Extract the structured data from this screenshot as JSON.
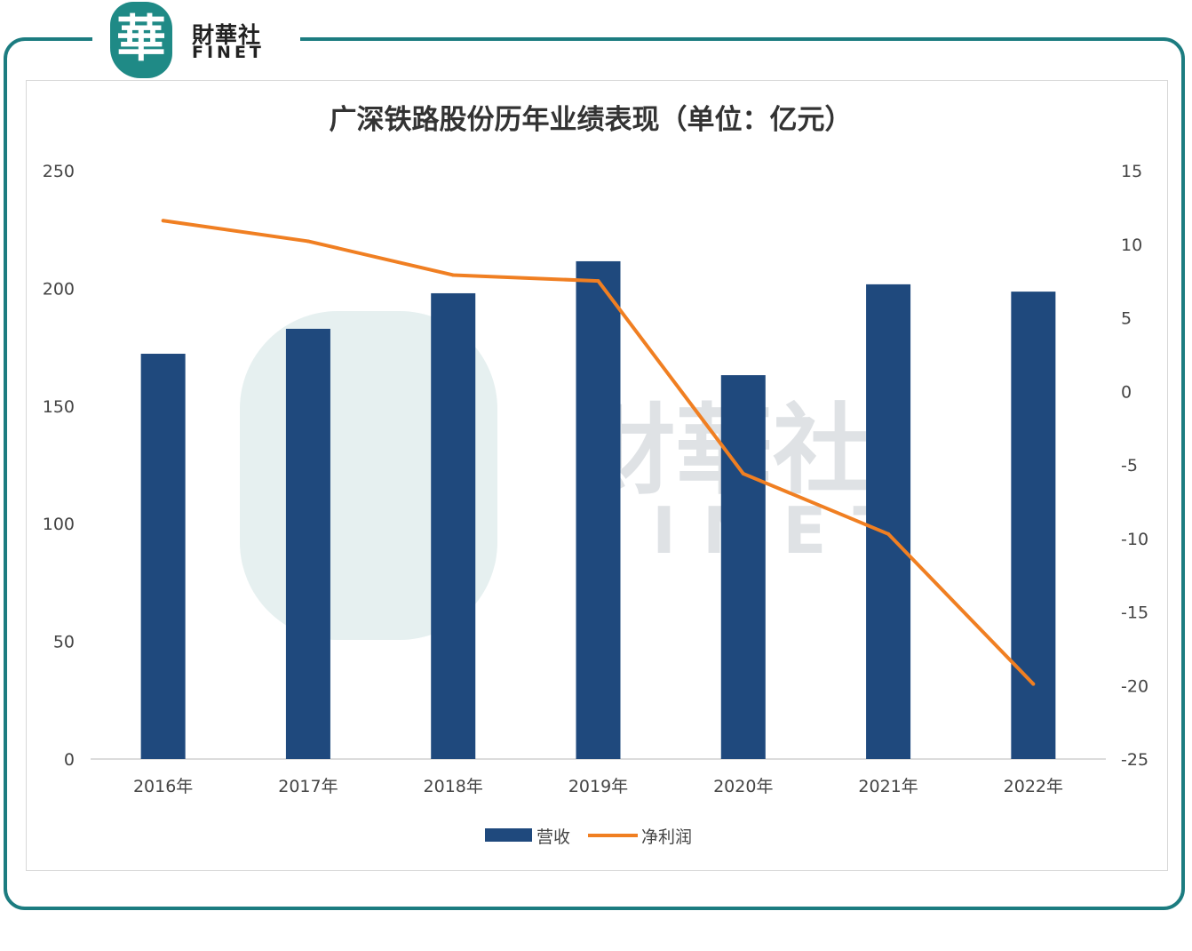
{
  "brand": {
    "logo_char": "華",
    "name_cn": "財華社",
    "name_en": "FINET"
  },
  "colors": {
    "frame": "#1c7c80",
    "bar": "#1f497d",
    "line": "#f07f22"
  },
  "chart_data": {
    "type": "bar+line",
    "title": "广深铁路股份历年业绩表现（单位：亿元）",
    "categories": [
      "2016年",
      "2017年",
      "2018年",
      "2019年",
      "2020年",
      "2021年",
      "2022年"
    ],
    "series": [
      {
        "name": "营收",
        "type": "bar",
        "axis": "left",
        "color": "#1f497d",
        "values": [
          172.2,
          182.8,
          197.9,
          211.5,
          163.1,
          201.7,
          198.6
        ]
      },
      {
        "name": "净利润",
        "type": "line",
        "axis": "right",
        "color": "#f07f22",
        "values": [
          11.6,
          10.2,
          7.9,
          7.5,
          -5.6,
          -9.7,
          -19.9
        ]
      }
    ],
    "y_left": {
      "range": [
        0,
        250
      ],
      "ticks": [
        "0",
        "50",
        "100",
        "150",
        "200",
        "250"
      ]
    },
    "y_right": {
      "range": [
        -25,
        15
      ],
      "ticks": [
        "-25",
        "-20",
        "-15",
        "-10",
        "-5",
        "0",
        "5",
        "10",
        "15"
      ]
    },
    "grid": false,
    "legend": "bottom"
  }
}
